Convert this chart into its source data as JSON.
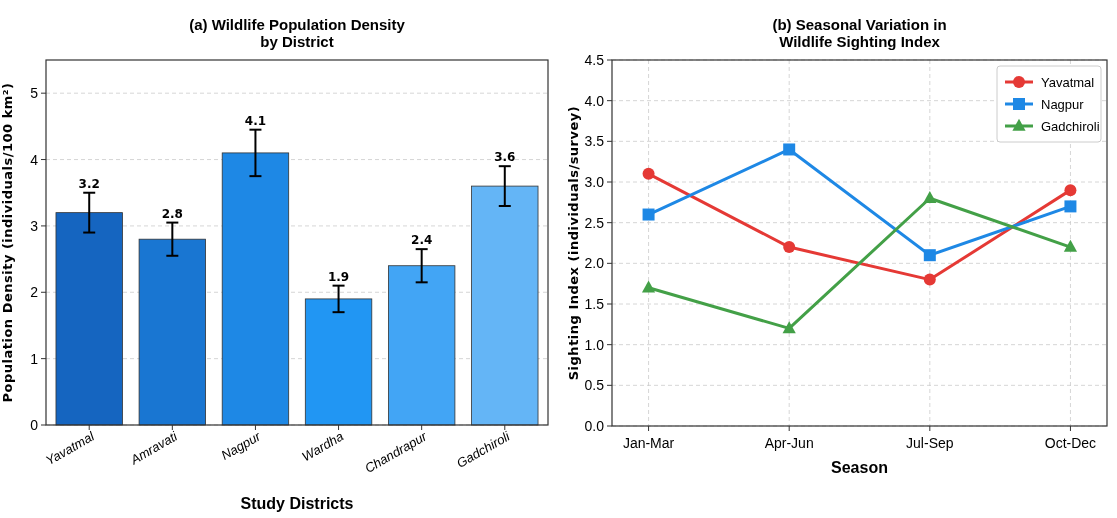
{
  "chart_data": [
    {
      "type": "bar",
      "title": "(a) Wildlife Population Density\nby District",
      "xlabel": "Study Districts",
      "ylabel": "Population Density (individuals/100 km²)",
      "categories": [
        "Yavatmal",
        "Amravati",
        "Nagpur",
        "Wardha",
        "Chandrapur",
        "Gadchiroli"
      ],
      "values": [
        3.2,
        2.8,
        4.1,
        1.9,
        2.4,
        3.6
      ],
      "errors": [
        0.3,
        0.25,
        0.35,
        0.2,
        0.25,
        0.3
      ],
      "colors": [
        "#1565c0",
        "#1976d2",
        "#1e88e5",
        "#2196f3",
        "#42a5f5",
        "#64b5f6"
      ],
      "ylim": [
        0,
        5.5
      ],
      "yticks": [
        0,
        1,
        2,
        3,
        4,
        5
      ],
      "grid": "y",
      "data_labels": true
    },
    {
      "type": "line",
      "title": "(b) Seasonal Variation in\nWildlife Sighting Index",
      "xlabel": "Season",
      "ylabel": "Sighting Index (individuals/survey)",
      "categories": [
        "Jan-Mar",
        "Apr-Jun",
        "Jul-Sep",
        "Oct-Dec"
      ],
      "series": [
        {
          "name": "Yavatmal",
          "color": "#e53935",
          "values": [
            3.1,
            2.2,
            1.8,
            2.9
          ],
          "marker": "circle"
        },
        {
          "name": "Nagpur",
          "color": "#1e88e5",
          "values": [
            2.6,
            3.4,
            2.1,
            2.7
          ],
          "marker": "square"
        },
        {
          "name": "Gadchiroli",
          "color": "#43a047",
          "values": [
            1.7,
            1.2,
            2.8,
            2.2
          ],
          "marker": "triangle"
        }
      ],
      "ylim": [
        0,
        4.5
      ],
      "yticks": [
        {
          "value": 0,
          "label": "0.0"
        },
        {
          "value": 0.5,
          "label": "0.5"
        },
        {
          "value": 1,
          "label": "1.0"
        },
        {
          "value": 1.5,
          "label": "1.5"
        },
        {
          "value": 2,
          "label": "2.0"
        },
        {
          "value": 2.5,
          "label": "2.5"
        },
        {
          "value": 3,
          "label": "3.0"
        },
        {
          "value": 3.5,
          "label": "3.5"
        },
        {
          "value": 4,
          "label": "4.0"
        },
        {
          "value": 4.5,
          "label": "4.5"
        }
      ],
      "grid": true,
      "legend": "top right",
      "line_style": "solid"
    }
  ]
}
